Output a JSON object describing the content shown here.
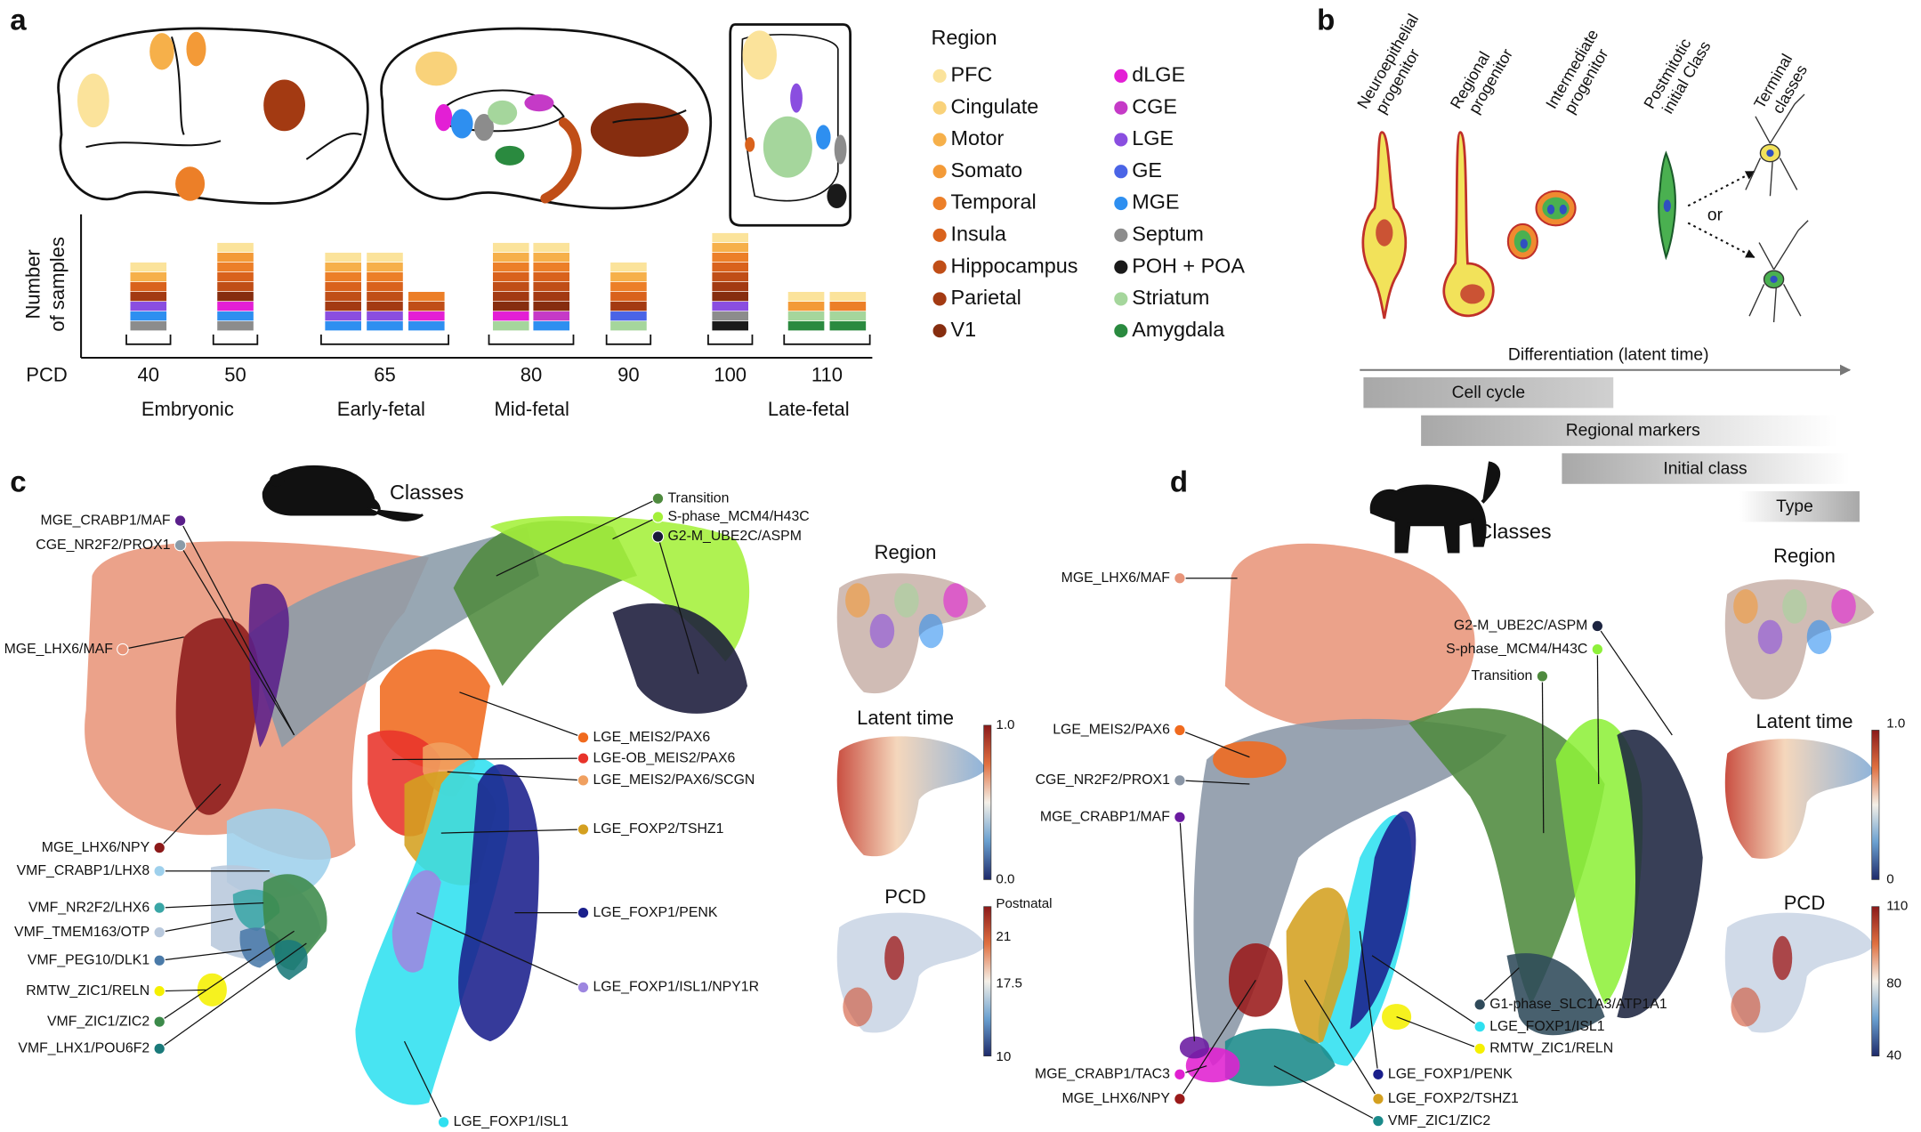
{
  "panels": {
    "a": {
      "label": "a",
      "legend": {
        "title": "Region",
        "items": [
          {
            "name": "PFC",
            "color": "#fbe39b"
          },
          {
            "name": "Cingulate",
            "color": "#f9d27a"
          },
          {
            "name": "Motor",
            "color": "#f6b04a"
          },
          {
            "name": "Somato",
            "color": "#f39a37"
          },
          {
            "name": "Temporal",
            "color": "#ec7f28"
          },
          {
            "name": "Insula",
            "color": "#d9621c"
          },
          {
            "name": "Hippocampus",
            "color": "#c04e17"
          },
          {
            "name": "Parietal",
            "color": "#a33a12"
          },
          {
            "name": "V1",
            "color": "#862d0f"
          },
          {
            "name": "dLGE",
            "color": "#e31fd5"
          },
          {
            "name": "CGE",
            "color": "#c53ac7"
          },
          {
            "name": "LGE",
            "color": "#8a4ee0"
          },
          {
            "name": "GE",
            "color": "#4a64e6"
          },
          {
            "name": "MGE",
            "color": "#2e8ff0"
          },
          {
            "name": "Septum",
            "color": "#8c8c8c"
          },
          {
            "name": "POH + POA",
            "color": "#1a1a1a"
          },
          {
            "name": "Striatum",
            "color": "#a5d69c"
          },
          {
            "name": "Amygdala",
            "color": "#2a8a3f"
          }
        ]
      },
      "bar_chart": {
        "y_label": [
          "Number",
          "of samples"
        ],
        "x_label": "PCD",
        "groups": [
          {
            "tick": "40",
            "bars": [
              [
                "Septum",
                "MGE",
                "LGE",
                "Parietal",
                "Insula",
                "Motor",
                "PFC"
              ]
            ]
          },
          {
            "tick": "50",
            "bars": [
              [
                "Septum",
                "MGE",
                "dLGE",
                "V1",
                "Hippocampus",
                "Insula",
                "Temporal",
                "Somato",
                "PFC"
              ]
            ]
          },
          {
            "tick": "65",
            "bars": [
              [
                "MGE",
                "LGE",
                "Parietal",
                "Hippocampus",
                "Insula",
                "Temporal",
                "Motor",
                "PFC"
              ],
              [
                "MGE",
                "LGE",
                "Parietal",
                "Hippocampus",
                "Insula",
                "Temporal",
                "Motor",
                "PFC"
              ],
              [
                "MGE",
                "dLGE",
                "Hippocampus",
                "Temporal"
              ]
            ]
          },
          {
            "tick": "80",
            "bars": [
              [
                "Striatum",
                "dLGE",
                "V1",
                "Parietal",
                "Hippocampus",
                "Insula",
                "Temporal",
                "Motor",
                "PFC"
              ],
              [
                "MGE",
                "CGE",
                "V1",
                "Parietal",
                "Hippocampus",
                "Insula",
                "Temporal",
                "Motor",
                "PFC"
              ]
            ]
          },
          {
            "tick": "90",
            "bars": [
              [
                "Striatum",
                "GE",
                "Parietal",
                "Insula",
                "Temporal",
                "Motor",
                "PFC"
              ]
            ]
          },
          {
            "tick": "100",
            "bars": [
              [
                "POH + POA",
                "Septum",
                "LGE",
                "V1",
                "Parietal",
                "Hippocampus",
                "Insula",
                "Temporal",
                "Motor",
                "PFC"
              ]
            ]
          },
          {
            "tick": "110",
            "bars": [
              [
                "Amygdala",
                "Striatum",
                "Somato",
                "PFC"
              ],
              [
                "Amygdala",
                "Striatum",
                "Temporal",
                "PFC"
              ]
            ]
          }
        ],
        "stages": [
          "Embryonic",
          "Early-fetal",
          "Mid-fetal",
          "Late-fetal"
        ]
      }
    },
    "b": {
      "label": "b",
      "stages": [
        [
          "Neuroepithelial",
          "progenitor"
        ],
        [
          "Regional",
          "progenitor"
        ],
        [
          "Intermediate",
          "progenitor"
        ],
        [
          "Postmitotic",
          "initial Class"
        ],
        [
          "Terminal",
          "classes"
        ]
      ],
      "or": "or",
      "axis": "Differentiation (latent time)",
      "phases": [
        "Cell cycle",
        "Regional markers",
        "Initial class",
        "Type"
      ]
    },
    "c": {
      "label": "c",
      "title": "Classes",
      "classes": [
        {
          "name": "MGE_CRABP1/MAF",
          "color": "#5a1f8a"
        },
        {
          "name": "CGE_NR2F2/PROX1",
          "color": "#8a9ba8"
        },
        {
          "name": "MGE_LHX6/MAF",
          "color": "#e8957a"
        },
        {
          "name": "MGE_LHX6/NPY",
          "color": "#8c1a1a"
        },
        {
          "name": "VMF_CRABP1/LHX8",
          "color": "#9ed0ec"
        },
        {
          "name": "VMF_NR2F2/LHX6",
          "color": "#3aa6a6"
        },
        {
          "name": "VMF_TMEM163/OTP",
          "color": "#b8c8dc"
        },
        {
          "name": "VMF_PEG10/DLK1",
          "color": "#4a7aa8"
        },
        {
          "name": "RMTW_ZIC1/RELN",
          "color": "#f5f000"
        },
        {
          "name": "VMF_ZIC1/ZIC2",
          "color": "#3c8a4a"
        },
        {
          "name": "VMF_LHX1/POU6F2",
          "color": "#1a7a7a"
        },
        {
          "name": "Transition",
          "color": "#4e8a3e"
        },
        {
          "name": "S-phase_MCM4/H43C",
          "color": "#a4f03a"
        },
        {
          "name": "G2-M_UBE2C/ASPM",
          "color": "#1a1a3a"
        },
        {
          "name": "LGE_MEIS2/PAX6",
          "color": "#f06a1e"
        },
        {
          "name": "LGE-OB_MEIS2/PAX6",
          "color": "#e8332a"
        },
        {
          "name": "LGE_MEIS2/PAX6/SCGN",
          "color": "#f0a060"
        },
        {
          "name": "LGE_FOXP2/TSHZ1",
          "color": "#d4a020"
        },
        {
          "name": "LGE_FOXP1/PENK",
          "color": "#1a1f8c"
        },
        {
          "name": "LGE_FOXP1/ISL1/NPY1R",
          "color": "#9d86e0"
        },
        {
          "name": "LGE_FOXP1/ISL1",
          "color": "#2fe0f0"
        }
      ],
      "insets": {
        "region": "Region",
        "latent": {
          "title": "Latent time",
          "ticks": [
            "1.0",
            "0.0"
          ]
        },
        "pcd": {
          "title": "PCD",
          "ticks": [
            "Postnatal",
            "21",
            "17.5",
            "10"
          ]
        }
      }
    },
    "d": {
      "label": "d",
      "title": "Classes",
      "classes": [
        {
          "name": "MGE_LHX6/MAF",
          "color": "#e8957a"
        },
        {
          "name": "LGE_MEIS2/PAX6",
          "color": "#f06a1e"
        },
        {
          "name": "CGE_NR2F2/PROX1",
          "color": "#8a96a6"
        },
        {
          "name": "MGE_CRABP1/MAF",
          "color": "#6a1aa0"
        },
        {
          "name": "MGE_CRABP1/TAC3",
          "color": "#e020d0"
        },
        {
          "name": "MGE_LHX6/NPY",
          "color": "#9a1a1a"
        },
        {
          "name": "G2-M_UBE2C/ASPM",
          "color": "#1c2440"
        },
        {
          "name": "S-phase_MCM4/H43C",
          "color": "#8ef03a"
        },
        {
          "name": "Transition",
          "color": "#4e8a3e"
        },
        {
          "name": "G1-phase_SLC1A3/ATP1A1",
          "color": "#2f4a5a"
        },
        {
          "name": "LGE_FOXP1/ISL1",
          "color": "#2fe0f0"
        },
        {
          "name": "RMTW_ZIC1/RELN",
          "color": "#f5f000"
        },
        {
          "name": "LGE_FOXP1/PENK",
          "color": "#1a1f8c"
        },
        {
          "name": "LGE_FOXP2/TSHZ1",
          "color": "#d4a020"
        },
        {
          "name": "VMF_ZIC1/ZIC2",
          "color": "#1a8a8a"
        }
      ],
      "insets": {
        "region": "Region",
        "latent": {
          "title": "Latent time",
          "ticks": [
            "1.0",
            "0"
          ]
        },
        "pcd": {
          "title": "PCD",
          "ticks": [
            "110",
            "80",
            "40"
          ]
        }
      }
    }
  }
}
